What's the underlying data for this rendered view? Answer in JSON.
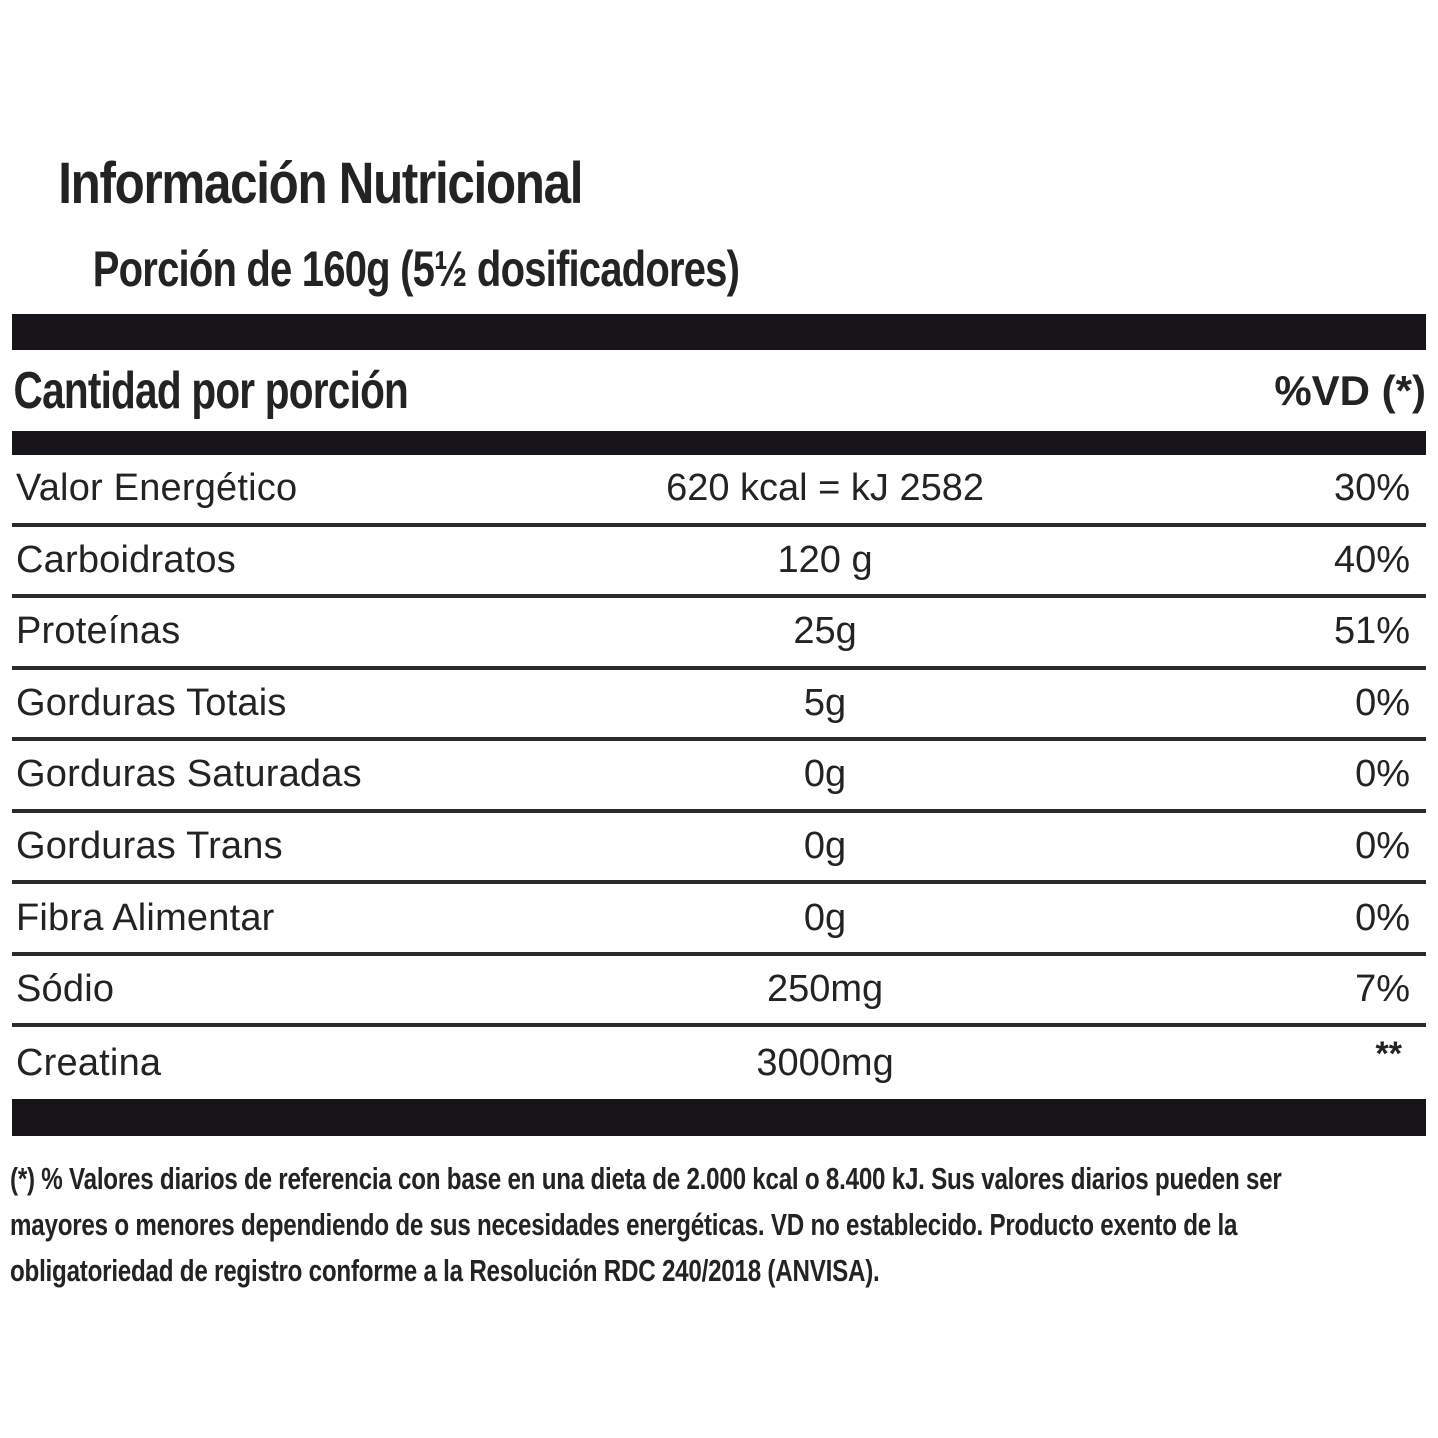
{
  "label": {
    "title": "Información Nutricional",
    "serving": "Porción de 160g (5½ dosificadores)",
    "header": {
      "left": "Cantidad por porción",
      "right": "%VD (*)"
    },
    "rows": [
      {
        "name": "Valor Energético",
        "amount": "620 kcal = kJ 2582",
        "dv": "30%"
      },
      {
        "name": "Carboidratos",
        "amount": "120 g",
        "dv": "40%"
      },
      {
        "name": "Proteínas",
        "amount": "25g",
        "dv": "51%"
      },
      {
        "name": "Gorduras Totais",
        "amount": "5g",
        "dv": "0%"
      },
      {
        "name": "Gorduras Saturadas",
        "amount": "0g",
        "dv": "0%"
      },
      {
        "name": "Gorduras Trans",
        "amount": "0g",
        "dv": "0%"
      },
      {
        "name": "Fibra Alimentar",
        "amount": "0g",
        "dv": "0%"
      },
      {
        "name": "Sódio",
        "amount": "250mg",
        "dv": "7%"
      },
      {
        "name": "Creatina",
        "amount": "3000mg",
        "dv": "**"
      }
    ],
    "footnote": [
      "(*) % Valores diarios de referencia con base en una dieta de 2.000 kcal o 8.400 kJ. Sus valores diarios pueden ser",
      "mayores o menores dependiendo de sus necesidades energéticas. VD no establecido. Producto exento de la",
      "obligatoriedad de registro conforme a la Resolución RDC 240/2018 (ANVISA)."
    ],
    "colors": {
      "bar_color": "#17141a",
      "text_color": "#232323",
      "line_color": "#2b2b2b"
    }
  }
}
